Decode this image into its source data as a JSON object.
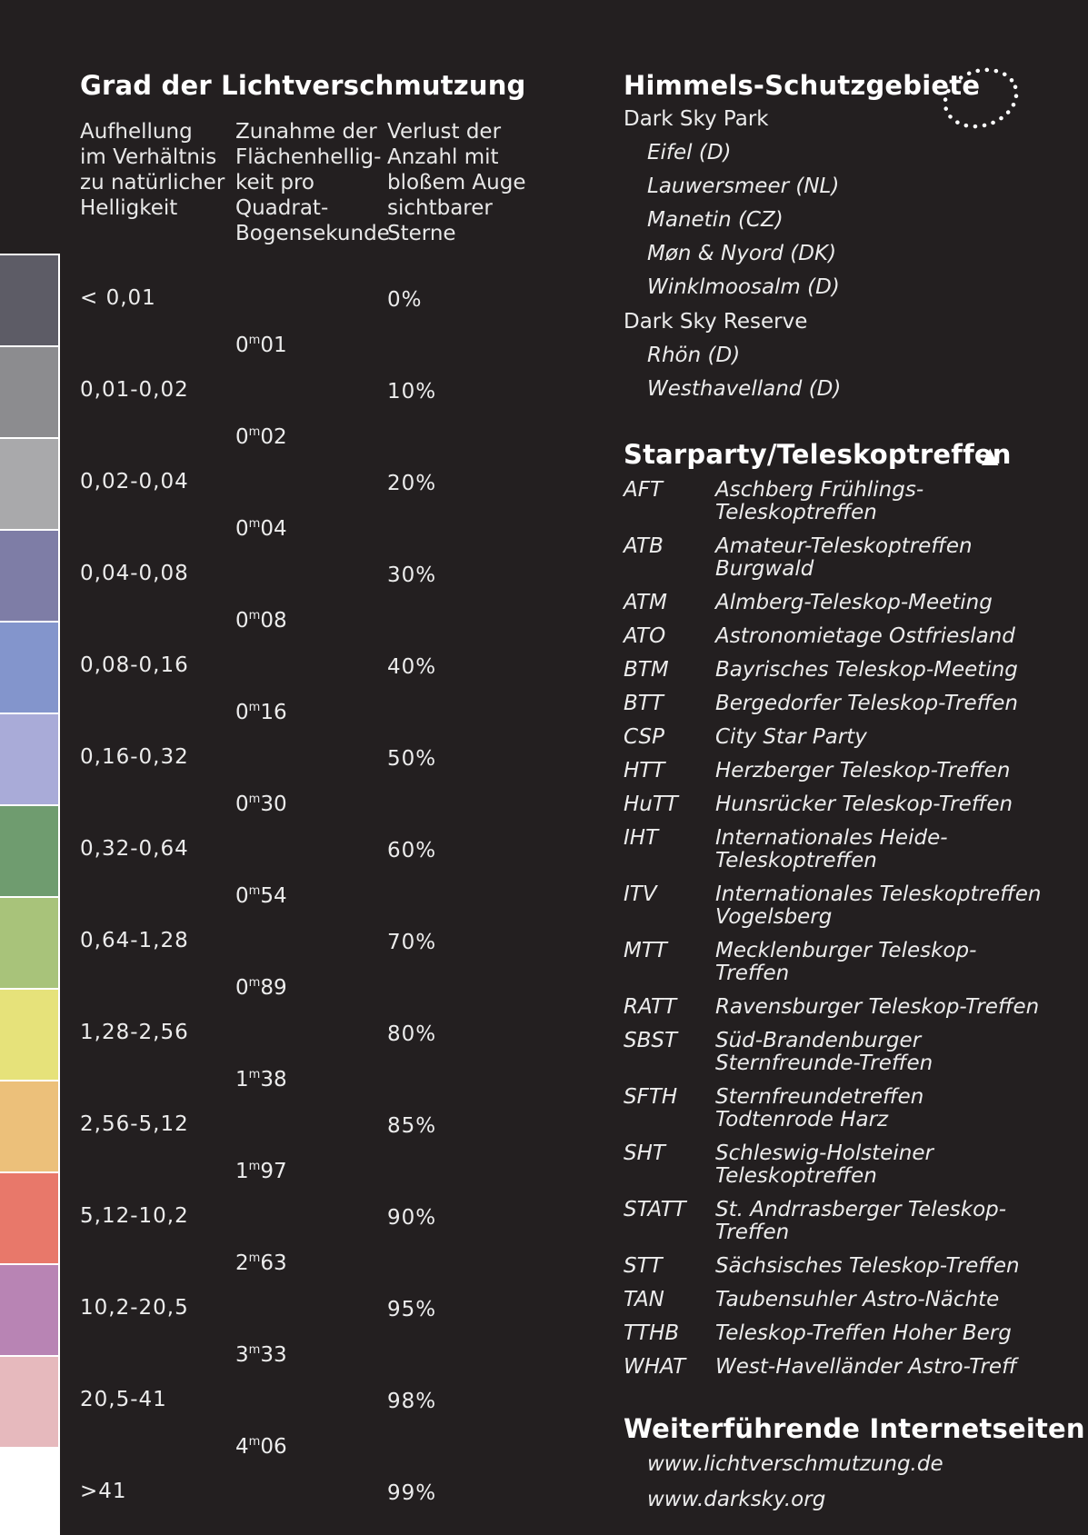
{
  "left": {
    "title": "Grad der Lichtverschmutzung",
    "col1_header": "Aufhellung\nim Verhältnis\nzu natürlicher\nHelligkeit",
    "col2_header": "Zunahme der\nFlächenhellig-\nkeit pro\nQuadrat-\nBogensekunde",
    "col3_header": "Verlust der\nAnzahl mit\nbloßem Auge\nsichtbarer\nSterne",
    "rows": [
      {
        "ratio": "< 0,01",
        "loss": "0%",
        "color": "#5d5c66"
      },
      {
        "ratio": "0,01-0,02",
        "loss": "10%",
        "color": "#8c8c8f"
      },
      {
        "ratio": "0,02-0,04",
        "loss": "20%",
        "color": "#a9a9ab"
      },
      {
        "ratio": "0,04-0,08",
        "loss": "30%",
        "color": "#7e7da6"
      },
      {
        "ratio": "0,08-0,16",
        "loss": "40%",
        "color": "#8395cc"
      },
      {
        "ratio": "0,16-0,32",
        "loss": "50%",
        "color": "#a9abd8"
      },
      {
        "ratio": "0,32-0,64",
        "loss": "60%",
        "color": "#6f9c6f"
      },
      {
        "ratio": "0,64-1,28",
        "loss": "70%",
        "color": "#a8c37a"
      },
      {
        "ratio": "1,28-2,56",
        "loss": "80%",
        "color": "#e6e27a"
      },
      {
        "ratio": "2,56-5,12",
        "loss": "85%",
        "color": "#ecc07a"
      },
      {
        "ratio": "5,12-10,2",
        "loss": "90%",
        "color": "#e8786a"
      },
      {
        "ratio": "10,2-20,5",
        "loss": "95%",
        "color": "#b884b4"
      },
      {
        "ratio": "20,5-41",
        "loss": "98%",
        "color": "#e6b9bd"
      },
      {
        "ratio": ">41",
        "loss": "99%",
        "color": "#ffffff"
      }
    ],
    "magnitudes": [
      {
        "int": "0",
        "frac": "01"
      },
      {
        "int": "0",
        "frac": "02"
      },
      {
        "int": "0",
        "frac": "04"
      },
      {
        "int": "0",
        "frac": "08"
      },
      {
        "int": "0",
        "frac": "16"
      },
      {
        "int": "0",
        "frac": "30"
      },
      {
        "int": "0",
        "frac": "54"
      },
      {
        "int": "0",
        "frac": "89"
      },
      {
        "int": "1",
        "frac": "38"
      },
      {
        "int": "1",
        "frac": "97"
      },
      {
        "int": "2",
        "frac": "63"
      },
      {
        "int": "3",
        "frac": "33"
      },
      {
        "int": "4",
        "frac": "06"
      }
    ],
    "mag_unit": "m"
  },
  "right": {
    "reserves_title": "Himmels-Schutzgebiete",
    "park_label": "Dark Sky Park",
    "parks": [
      "Eifel (D)",
      "Lauwersmeer (NL)",
      "Manetin (CZ)",
      "Møn & Nyord (DK)",
      "Winklmoosalm (D)"
    ],
    "reserve_label": "Dark Sky Reserve",
    "reserves": [
      "Rhön (D)",
      "Westhavelland (D)"
    ],
    "events_title": "Starparty/Teleskoptreffen",
    "events_symbol": "▲",
    "events": [
      {
        "abbr": "AFT",
        "name": "Aschberg Frühlings-\nTeleskoptreffen"
      },
      {
        "abbr": "ATB",
        "name": "Amateur-Teleskoptreffen\nBurgwald"
      },
      {
        "abbr": "ATM",
        "name": "Almberg-Teleskop-Meeting"
      },
      {
        "abbr": "ATO",
        "name": "Astronomietage Ostfriesland"
      },
      {
        "abbr": "BTM",
        "name": "Bayrisches Teleskop-Meeting"
      },
      {
        "abbr": "BTT",
        "name": "Bergedorfer Teleskop-Treffen"
      },
      {
        "abbr": "CSP",
        "name": "City Star Party"
      },
      {
        "abbr": "HTT",
        "name": "Herzberger Teleskop-Treffen"
      },
      {
        "abbr": "HuTT",
        "name": "Hunsrücker Teleskop-Treffen"
      },
      {
        "abbr": "IHT",
        "name": "Internationales Heide-\nTeleskoptreffen"
      },
      {
        "abbr": "ITV",
        "name": "Internationales Teleskoptreffen\nVogelsberg"
      },
      {
        "abbr": "MTT",
        "name": "Mecklenburger Teleskop-\nTreffen"
      },
      {
        "abbr": "RATT",
        "name": "Ravensburger Teleskop-Treffen"
      },
      {
        "abbr": "SBST",
        "name": "Süd-Brandenburger\nSternfreunde-Treffen"
      },
      {
        "abbr": "SFTH",
        "name": "Sternfreundetreffen\nTodtenrode Harz"
      },
      {
        "abbr": "SHT",
        "name": "Schleswig-Holsteiner\nTeleskoptreffen"
      },
      {
        "abbr": "STATT",
        "name": "St. Andrrasberger Teleskop-\nTreffen"
      },
      {
        "abbr": "STT",
        "name": "Sächsisches Teleskop-Treffen"
      },
      {
        "abbr": "TAN",
        "name": "Taubensuhler Astro-Nächte"
      },
      {
        "abbr": "TTHB",
        "name": "Teleskop-Treffen Hoher Berg"
      },
      {
        "abbr": "WHAT",
        "name": "West-Havelländer Astro-Treff"
      }
    ],
    "links_title": "Weiterführende Internetseiten",
    "links": [
      "www.lichtverschmutzung.de",
      "www.darksky.org"
    ]
  }
}
